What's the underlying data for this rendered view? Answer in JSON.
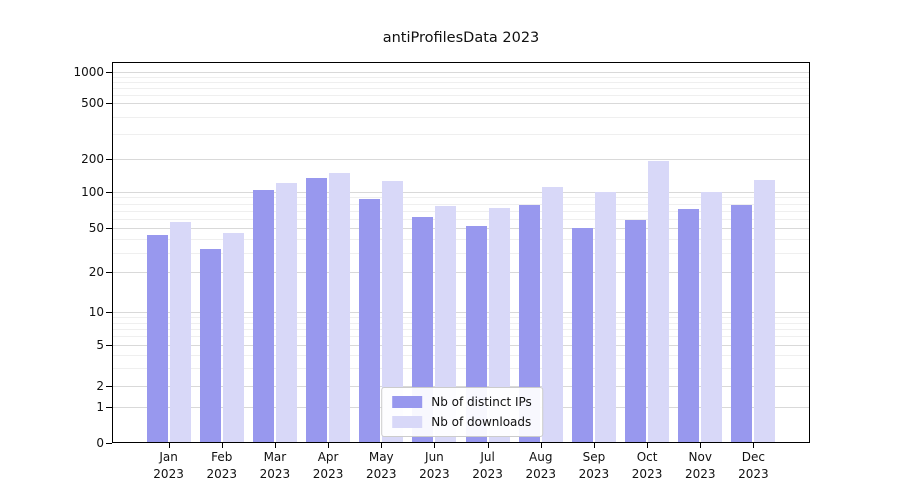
{
  "chart_data": {
    "type": "bar",
    "title": "antiProfilesData 2023",
    "x_axis": {
      "months": [
        "Jan",
        "Feb",
        "Mar",
        "Apr",
        "May",
        "Jun",
        "Jul",
        "Aug",
        "Sep",
        "Oct",
        "Nov",
        "Dec"
      ],
      "year": "2023"
    },
    "categories": [
      "Jan 2023",
      "Feb 2023",
      "Mar 2023",
      "Apr 2023",
      "May 2023",
      "Jun 2023",
      "Jul 2023",
      "Aug 2023",
      "Sep 2023",
      "Oct 2023",
      "Nov 2023",
      "Dec 2023"
    ],
    "series": [
      {
        "name": "Nb of distinct IPs",
        "color": "#9898ee",
        "values": [
          43,
          32,
          105,
          135,
          88,
          62,
          52,
          78,
          50,
          58,
          72,
          78
        ]
      },
      {
        "name": "Nb of downloads",
        "color": "#d8d8f8",
        "values": [
          56,
          45,
          120,
          150,
          125,
          76,
          74,
          112,
          100,
          190,
          101,
          130
        ]
      }
    ],
    "y_axis": {
      "scale": "symlog",
      "ticks": [
        0,
        1,
        2,
        5,
        10,
        20,
        50,
        100,
        200,
        500,
        1000
      ],
      "minor_ticks": [
        3,
        4,
        6,
        7,
        8,
        9,
        30,
        40,
        60,
        70,
        80,
        90,
        300,
        400,
        600,
        700,
        800,
        900
      ],
      "range": [
        0,
        1000
      ]
    },
    "grid": true,
    "legend": {
      "position": "lower-center",
      "entries": [
        "Nb of distinct IPs",
        "Nb of downloads"
      ]
    }
  },
  "colors": {
    "distinct_ips": "#9898ee",
    "downloads": "#d8d8f8",
    "grid_major": "#d9d9d9",
    "grid_minor": "#efefef",
    "axis": "#000000",
    "background": "#ffffff"
  }
}
